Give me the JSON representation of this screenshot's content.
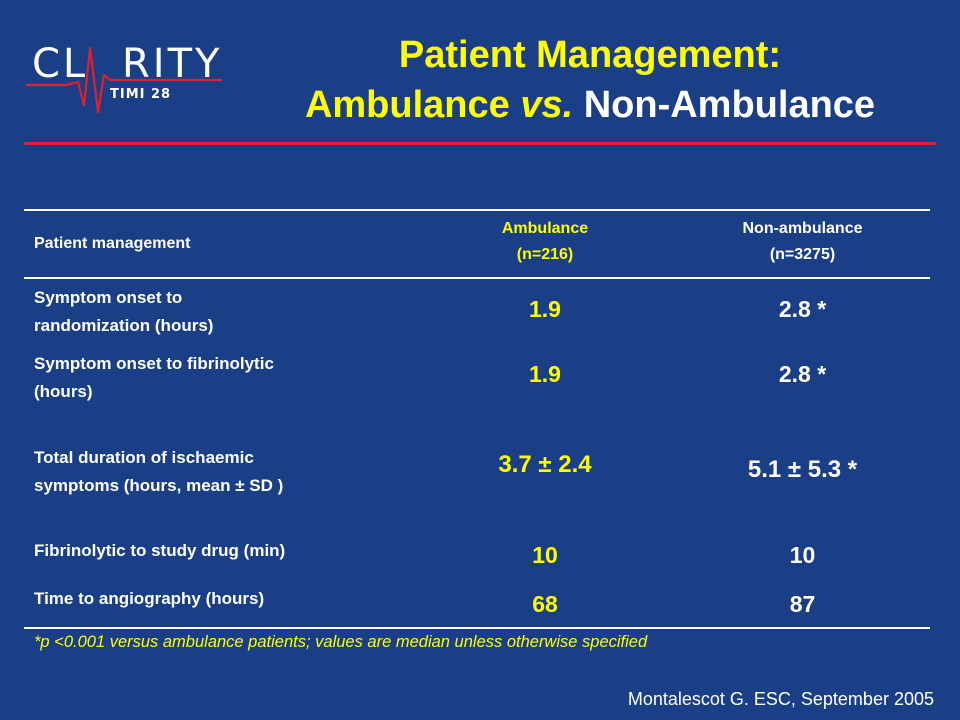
{
  "logo": {
    "word_left": "CL",
    "word_right": "RITY",
    "sub": "TIMI 28",
    "colors": {
      "pulse": "#e0202a",
      "text": "#ffffff"
    }
  },
  "title": {
    "line1": "Patient Management:",
    "line2_part1": "Ambulance ",
    "line2_part2": "vs.",
    "line2_part3": " Non-Ambulance"
  },
  "table": {
    "header": {
      "label": "Patient management",
      "ambulance_line1": "Ambulance",
      "ambulance_line2": "(n=216)",
      "nonambulance_line1": "Non-ambulance",
      "nonambulance_line2": "(n=3275)"
    },
    "rows": [
      {
        "label_line1": "Symptom onset to",
        "label_line2": "randomization (hours)",
        "ambulance": "1.9",
        "nonambulance": "2.8 *"
      },
      {
        "label_line1": "Symptom onset to fibrinolytic",
        "label_line2": "(hours)",
        "ambulance": "1.9",
        "nonambulance": "2.8 *"
      },
      {
        "label_line1": "Total duration of ischaemic",
        "label_line2": "symptoms (hours, mean ± SD )",
        "ambulance": "3.7 ± 2.4",
        "nonambulance": "5.1 ± 5.3 *"
      },
      {
        "label_line1": "Fibrinolytic to study drug (min)",
        "ambulance": "10",
        "nonambulance": "10"
      },
      {
        "label_line1": "Time to angiography (hours)",
        "ambulance": "68",
        "nonambulance": "87"
      }
    ]
  },
  "footnote": "*p <0.001 versus ambulance patients; values are median unless otherwise specified",
  "citation": "Montalescot G. ESC, September 2005",
  "colors": {
    "background": "#1b3f87",
    "accent_yellow": "#ffff00",
    "rule_red": "#e0202a"
  }
}
